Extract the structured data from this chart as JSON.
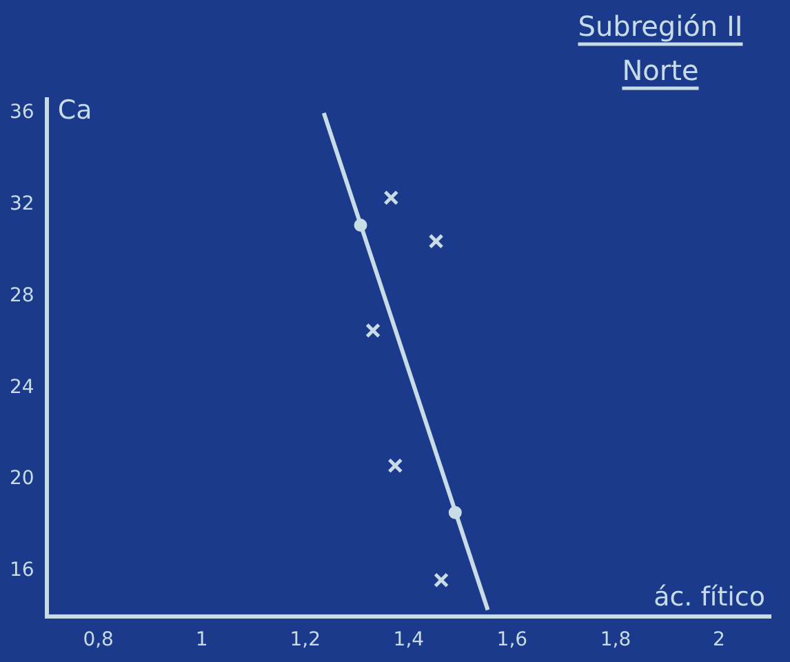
{
  "chart_data": {
    "type": "scatter",
    "title": "Subregión II",
    "subtitle": "Norte",
    "xlabel": "ác. fítico",
    "ylabel": "Ca",
    "xlim": [
      0.7,
      2.1
    ],
    "xticks": [
      {
        "value": 0.8,
        "label": "0,8"
      },
      1,
      {
        "value": 1.2,
        "label": "1,2"
      },
      {
        "value": 1.4,
        "label": "1,4"
      },
      {
        "value": 1.6,
        "label": "1,6"
      },
      {
        "value": 1.8,
        "label": "1,8"
      },
      2
    ],
    "ylim": [
      14,
      36.6
    ],
    "yticks": [
      16,
      20,
      24,
      28,
      32,
      36
    ],
    "grid": false,
    "legend": false,
    "series": [
      {
        "type": "scatter",
        "marker": "cross",
        "color": "#c8dce6",
        "x": [
          1.366,
          1.453,
          1.331,
          1.374,
          1.463
        ],
        "values": [
          32.3,
          30.4,
          26.5,
          20.6,
          15.6
        ]
      },
      {
        "type": "line",
        "marker": "none",
        "color": "#c8dce6",
        "x": [
          1.236,
          1.553
        ],
        "values": [
          36,
          14.3
        ]
      },
      {
        "type": "scatter",
        "marker": "circle",
        "color": "#c8dce6",
        "x": [
          1.307,
          1.49
        ],
        "values": [
          31.1,
          18.55
        ]
      }
    ]
  }
}
